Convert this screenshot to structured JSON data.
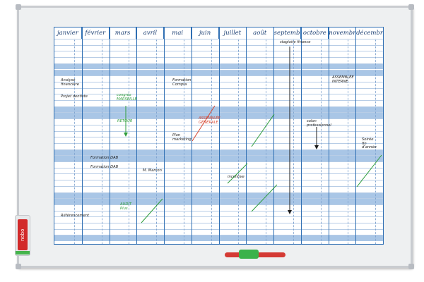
{
  "brand": {
    "logo_text": "nobo"
  },
  "planner": {
    "months": [
      "janvier",
      "février",
      "mars",
      "avril",
      "mai",
      "juin",
      "juillet",
      "août",
      "septembre",
      "octobre",
      "novembre",
      "décembre"
    ]
  },
  "notes": {
    "analyse": "Analyse financière",
    "projet": "Projet dentiste",
    "congres": "congrès MARSEILLE",
    "retour": "RETOUR",
    "formation_compta": "Formation Compta",
    "plan_marketing": "Plan marketing",
    "assemblee_generale": "ASSEMBLÉE GÉNÉRALE",
    "formation_dab_1": "Formation DAB",
    "formation_dab_2": "Formation DAB",
    "m_marcon": "M. Marcon",
    "audit_plus": "AUDIT Plus",
    "referencement": "Référencement",
    "incentive": "incentive",
    "stagiaire": "stagiaire finance",
    "salon": "salon professionnel",
    "assemblee_interne": "ASSEMBLÉE INTERNE",
    "soiree": "Soirée fin d'année"
  },
  "colors": {
    "grid_blue": "#2f6fb3",
    "stripe_blue": "#a9c6e6",
    "ink_black": "#1d1d1d",
    "ink_red": "#d6452f",
    "ink_green": "#2e9c3c"
  }
}
